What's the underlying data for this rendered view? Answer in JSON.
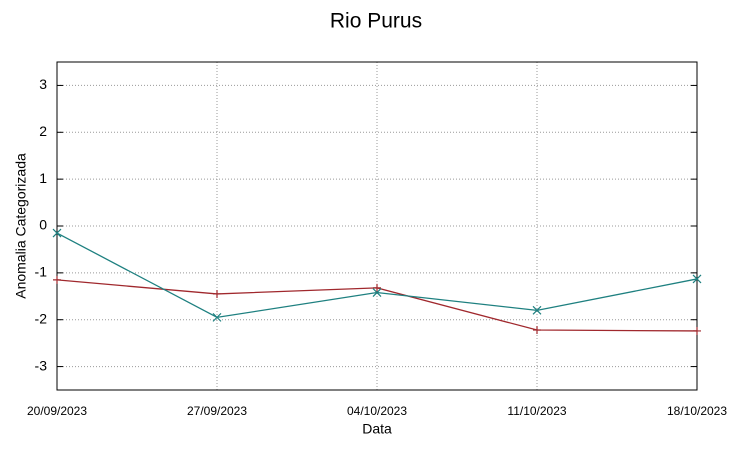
{
  "chart_data": {
    "type": "line",
    "title": "Rio Purus",
    "x_label": "Data",
    "y_label": "Anomalia Categorizada",
    "categories": [
      "20/09/2023",
      "27/09/2023",
      "04/10/2023",
      "11/10/2023",
      "18/10/2023"
    ],
    "series": [
      {
        "color": "#a0282d",
        "marker": "plus",
        "values": [
          -1.15,
          -1.45,
          -1.32,
          -2.22,
          -2.24
        ]
      },
      {
        "color": "#1e8080",
        "marker": "cross",
        "values": [
          -0.15,
          -1.95,
          -1.42,
          -1.8,
          -1.13
        ]
      }
    ],
    "ylim": [
      -3.5,
      3.5
    ],
    "yticks": [
      -3,
      -2,
      -1,
      0,
      1,
      2,
      3
    ],
    "grid": true
  }
}
